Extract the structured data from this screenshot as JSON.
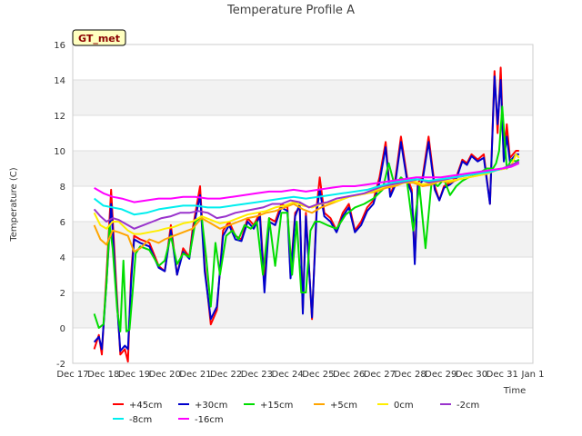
{
  "chart_data": {
    "type": "line",
    "title": "Temperature Profile A",
    "xlabel": "Time",
    "ylabel": "Temperature (C)",
    "badge": "GT_met",
    "ylim": [
      -2,
      16
    ],
    "xlim": [
      0,
      15
    ],
    "yticks": [
      -2,
      0,
      2,
      4,
      6,
      8,
      10,
      12,
      14,
      16
    ],
    "xticks": [
      {
        "x": 0,
        "label": "Dec 17"
      },
      {
        "x": 1,
        "label": "Dec 18"
      },
      {
        "x": 2,
        "label": "Dec 19"
      },
      {
        "x": 3,
        "label": "Dec 20"
      },
      {
        "x": 4,
        "label": "Dec 21"
      },
      {
        "x": 5,
        "label": "Dec 22"
      },
      {
        "x": 6,
        "label": "Dec 23"
      },
      {
        "x": 7,
        "label": "Dec 24"
      },
      {
        "x": 8,
        "label": "Dec 25"
      },
      {
        "x": 9,
        "label": "Dec 26"
      },
      {
        "x": 10,
        "label": "Dec 27"
      },
      {
        "x": 11,
        "label": "Dec 28"
      },
      {
        "x": 12,
        "label": "Dec 29"
      },
      {
        "x": 13,
        "label": "Dec 30"
      },
      {
        "x": 14,
        "label": "Dec 31"
      },
      {
        "x": 15,
        "label": "Jan 1"
      }
    ],
    "colors": {
      "band": "#f2f2f2",
      "grid": "#dddddd",
      "badge_fill": "#ffffc0"
    },
    "series": [
      {
        "name": "+45cm",
        "color": "#ff0000",
        "x": [
          0.7,
          0.85,
          0.95,
          1.1,
          1.25,
          1.4,
          1.55,
          1.7,
          1.8,
          1.9,
          2.0,
          2.2,
          2.5,
          2.8,
          3.0,
          3.2,
          3.4,
          3.6,
          3.8,
          3.9,
          4.0,
          4.15,
          4.3,
          4.5,
          4.7,
          4.9,
          5.1,
          5.3,
          5.5,
          5.7,
          5.9,
          6.1,
          6.25,
          6.4,
          6.6,
          6.8,
          7.0,
          7.1,
          7.25,
          7.4,
          7.5,
          7.6,
          7.8,
          7.95,
          8.05,
          8.2,
          8.4,
          8.6,
          8.8,
          9.0,
          9.2,
          9.4,
          9.6,
          9.8,
          10.0,
          10.2,
          10.35,
          10.5,
          10.7,
          10.9,
          11.05,
          11.15,
          11.25,
          11.4,
          11.6,
          11.8,
          11.95,
          12.1,
          12.3,
          12.5,
          12.7,
          12.85,
          13.0,
          13.2,
          13.4,
          13.6,
          13.75,
          13.85,
          13.95,
          14.05,
          14.15,
          14.25,
          14.35,
          14.45,
          14.55
        ],
        "values": [
          -1.2,
          -0.4,
          -1.5,
          3.0,
          7.8,
          3.0,
          -1.5,
          -1.2,
          -1.9,
          3.0,
          5.2,
          5.0,
          4.8,
          3.5,
          3.2,
          5.8,
          3.0,
          4.5,
          4.0,
          5.5,
          6.5,
          8.0,
          3.5,
          0.2,
          1.0,
          5.5,
          6.0,
          5.2,
          5.0,
          6.2,
          5.8,
          6.5,
          2.5,
          6.2,
          6.0,
          7.0,
          6.8,
          3.0,
          6.5,
          6.8,
          1.0,
          6.5,
          0.5,
          6.8,
          8.5,
          6.5,
          6.2,
          5.5,
          6.5,
          7.0,
          5.5,
          6.0,
          6.8,
          7.2,
          8.5,
          10.5,
          7.5,
          8.2,
          10.8,
          8.5,
          7.8,
          3.8,
          8.2,
          8.5,
          10.8,
          8.0,
          7.2,
          8.0,
          8.2,
          8.5,
          9.5,
          9.3,
          9.8,
          9.5,
          9.8,
          7.0,
          14.5,
          11.0,
          14.7,
          9.5,
          11.5,
          9.6,
          9.8,
          10.0,
          10.0
        ]
      },
      {
        "name": "+30cm",
        "color": "#0000cc",
        "x": [
          0.7,
          0.85,
          0.95,
          1.1,
          1.25,
          1.4,
          1.55,
          1.7,
          1.8,
          1.9,
          2.0,
          2.2,
          2.5,
          2.8,
          3.0,
          3.2,
          3.4,
          3.6,
          3.8,
          3.9,
          4.0,
          4.15,
          4.3,
          4.5,
          4.7,
          4.9,
          5.1,
          5.3,
          5.5,
          5.7,
          5.9,
          6.1,
          6.25,
          6.4,
          6.6,
          6.8,
          7.0,
          7.1,
          7.25,
          7.4,
          7.5,
          7.6,
          7.8,
          7.95,
          8.05,
          8.2,
          8.4,
          8.6,
          8.8,
          9.0,
          9.2,
          9.4,
          9.6,
          9.8,
          10.0,
          10.2,
          10.35,
          10.5,
          10.7,
          10.9,
          11.05,
          11.15,
          11.25,
          11.4,
          11.6,
          11.8,
          11.95,
          12.1,
          12.3,
          12.5,
          12.7,
          12.85,
          13.0,
          13.2,
          13.4,
          13.6,
          13.75,
          13.85,
          13.95,
          14.05,
          14.15,
          14.25,
          14.35,
          14.45,
          14.55
        ],
        "values": [
          -0.8,
          -0.5,
          -1.2,
          2.5,
          7.0,
          2.5,
          -1.3,
          -1.0,
          -1.2,
          2.5,
          5.0,
          4.8,
          4.6,
          3.4,
          3.2,
          5.5,
          3.0,
          4.3,
          3.9,
          5.2,
          6.2,
          7.5,
          3.2,
          0.5,
          1.2,
          5.2,
          5.8,
          5.0,
          4.9,
          6.0,
          5.6,
          6.3,
          2.0,
          6.0,
          5.8,
          6.8,
          6.6,
          2.8,
          6.3,
          7.0,
          0.8,
          6.3,
          0.6,
          6.5,
          7.8,
          6.3,
          6.0,
          5.4,
          6.3,
          6.8,
          5.4,
          5.8,
          6.6,
          7.0,
          8.2,
          10.2,
          7.4,
          8.0,
          10.5,
          8.3,
          7.6,
          3.6,
          8.0,
          8.3,
          10.5,
          7.8,
          7.2,
          7.9,
          8.1,
          8.4,
          9.4,
          9.2,
          9.7,
          9.4,
          9.6,
          7.0,
          14.2,
          11.5,
          14.0,
          9.4,
          10.8,
          9.4,
          9.6,
          9.8,
          9.8
        ]
      },
      {
        "name": "+15cm",
        "color": "#00dd00",
        "x": [
          0.7,
          0.85,
          1.0,
          1.1,
          1.2,
          1.3,
          1.45,
          1.55,
          1.65,
          1.75,
          1.85,
          1.95,
          2.05,
          2.2,
          2.5,
          2.8,
          3.0,
          3.2,
          3.4,
          3.6,
          3.8,
          4.0,
          4.2,
          4.35,
          4.5,
          4.65,
          4.8,
          5.0,
          5.2,
          5.4,
          5.6,
          5.8,
          6.0,
          6.2,
          6.4,
          6.6,
          6.8,
          7.0,
          7.15,
          7.3,
          7.45,
          7.6,
          7.75,
          7.9,
          8.05,
          8.3,
          8.6,
          8.9,
          9.2,
          9.5,
          9.8,
          10.1,
          10.3,
          10.5,
          10.7,
          10.9,
          11.1,
          11.3,
          11.5,
          11.7,
          11.9,
          12.1,
          12.3,
          12.5,
          12.7,
          12.9,
          13.1,
          13.3,
          13.5,
          13.7,
          13.8,
          13.9,
          14.0,
          14.15,
          14.3,
          14.45,
          14.55
        ],
        "values": [
          0.8,
          0.0,
          0.2,
          2.5,
          5.8,
          4.5,
          1.0,
          -0.2,
          3.8,
          -0.2,
          -0.1,
          2.0,
          4.2,
          4.6,
          4.4,
          3.5,
          3.8,
          5.2,
          3.6,
          4.2,
          4.0,
          6.0,
          6.3,
          4.0,
          1.2,
          4.8,
          3.0,
          5.2,
          5.5,
          5.0,
          5.8,
          5.6,
          6.0,
          3.0,
          6.2,
          3.5,
          6.5,
          6.5,
          3.0,
          6.0,
          2.0,
          2.0,
          5.5,
          6.0,
          6.0,
          5.8,
          5.6,
          6.4,
          6.8,
          7.0,
          7.3,
          7.8,
          9.3,
          8.0,
          8.5,
          8.2,
          5.5,
          8.0,
          4.5,
          8.3,
          8.0,
          8.4,
          7.5,
          8.0,
          8.3,
          8.5,
          8.6,
          8.8,
          9.0,
          9.0,
          9.3,
          10.0,
          12.5,
          9.0,
          9.5,
          9.4,
          9.5
        ]
      },
      {
        "name": "+5cm",
        "color": "#ffa500",
        "x": [
          0.7,
          0.9,
          1.1,
          1.3,
          1.5,
          1.8,
          2.0,
          2.2,
          2.5,
          2.8,
          3.0,
          3.3,
          3.6,
          3.9,
          4.2,
          4.5,
          4.8,
          5.1,
          5.4,
          5.7,
          6.0,
          6.3,
          6.6,
          6.9,
          7.2,
          7.5,
          7.8,
          8.1,
          8.4,
          8.7,
          9.0,
          9.3,
          9.6,
          9.9,
          10.2,
          10.5,
          10.8,
          11.1,
          11.4,
          11.7,
          12.0,
          12.3,
          12.6,
          12.9,
          13.2,
          13.5,
          13.8,
          14.1,
          14.4,
          14.55
        ],
        "values": [
          5.8,
          5.0,
          4.7,
          5.5,
          5.4,
          5.2,
          4.3,
          4.5,
          5.0,
          4.8,
          5.0,
          5.2,
          5.4,
          5.6,
          6.2,
          5.9,
          5.6,
          5.8,
          6.0,
          6.2,
          6.3,
          6.5,
          6.6,
          6.8,
          7.0,
          6.7,
          6.5,
          6.8,
          7.0,
          7.2,
          7.4,
          7.5,
          7.6,
          7.7,
          7.9,
          8.0,
          8.2,
          8.2,
          8.0,
          8.1,
          8.3,
          8.2,
          8.4,
          8.5,
          8.6,
          8.7,
          8.9,
          9.0,
          9.2,
          9.3
        ]
      },
      {
        "name": "0cm",
        "color": "#ffee00",
        "x": [
          0.7,
          0.9,
          1.1,
          1.3,
          1.5,
          1.8,
          2.0,
          2.2,
          2.5,
          2.8,
          3.0,
          3.3,
          3.6,
          3.9,
          4.2,
          4.5,
          4.8,
          5.1,
          5.4,
          5.7,
          6.0,
          6.3,
          6.6,
          6.9,
          7.2,
          7.5,
          7.8,
          8.1,
          8.4,
          8.7,
          9.0,
          9.3,
          9.6,
          9.9,
          10.2,
          10.5,
          10.8,
          11.1,
          11.4,
          11.7,
          12.0,
          12.3,
          12.6,
          12.9,
          13.2,
          13.5,
          13.8,
          14.1,
          14.3,
          14.45,
          14.55
        ],
        "values": [
          6.5,
          5.8,
          5.6,
          6.0,
          6.0,
          5.5,
          5.3,
          5.3,
          5.4,
          5.5,
          5.6,
          5.7,
          5.9,
          6.0,
          6.3,
          6.1,
          5.9,
          6.0,
          6.2,
          6.4,
          6.5,
          6.6,
          6.8,
          6.9,
          7.1,
          6.9,
          6.8,
          7.0,
          7.1,
          7.2,
          7.4,
          7.5,
          7.6,
          7.8,
          8.0,
          8.1,
          8.2,
          8.3,
          8.1,
          8.2,
          8.3,
          8.3,
          8.4,
          8.5,
          8.6,
          8.7,
          8.9,
          9.0,
          9.2,
          9.8,
          9.6
        ]
      },
      {
        "name": "-2cm",
        "color": "#9933cc",
        "x": [
          0.7,
          0.9,
          1.1,
          1.3,
          1.5,
          1.8,
          2.0,
          2.3,
          2.6,
          2.9,
          3.2,
          3.5,
          3.8,
          4.1,
          4.4,
          4.7,
          5.0,
          5.3,
          5.6,
          5.9,
          6.2,
          6.5,
          6.8,
          7.1,
          7.4,
          7.7,
          8.0,
          8.3,
          8.6,
          8.9,
          9.2,
          9.5,
          9.8,
          10.1,
          10.4,
          10.7,
          11.0,
          11.3,
          11.6,
          11.9,
          12.2,
          12.5,
          12.8,
          13.1,
          13.4,
          13.7,
          14.0,
          14.3,
          14.55
        ],
        "values": [
          6.7,
          6.3,
          6.0,
          6.2,
          6.1,
          5.8,
          5.6,
          5.8,
          6.0,
          6.2,
          6.3,
          6.5,
          6.5,
          6.6,
          6.5,
          6.2,
          6.3,
          6.5,
          6.6,
          6.7,
          6.8,
          7.0,
          7.0,
          7.2,
          7.1,
          6.8,
          7.0,
          7.1,
          7.3,
          7.4,
          7.5,
          7.6,
          7.8,
          8.0,
          8.1,
          8.2,
          8.3,
          8.4,
          8.2,
          8.3,
          8.4,
          8.5,
          8.6,
          8.7,
          8.8,
          8.9,
          9.0,
          9.2,
          9.4
        ]
      },
      {
        "name": "-8cm",
        "color": "#00eeee",
        "x": [
          0.7,
          1.0,
          1.3,
          1.6,
          2.0,
          2.4,
          2.8,
          3.2,
          3.6,
          4.0,
          4.4,
          4.8,
          5.2,
          5.6,
          6.0,
          6.4,
          6.8,
          7.2,
          7.6,
          8.0,
          8.4,
          8.8,
          9.2,
          9.6,
          10.0,
          10.4,
          10.8,
          11.2,
          11.6,
          12.0,
          12.4,
          12.8,
          13.2,
          13.6,
          14.0,
          14.3,
          14.55
        ],
        "values": [
          7.3,
          6.9,
          6.8,
          6.7,
          6.4,
          6.5,
          6.7,
          6.8,
          6.9,
          6.9,
          6.8,
          6.8,
          6.9,
          7.0,
          7.1,
          7.2,
          7.3,
          7.4,
          7.3,
          7.4,
          7.5,
          7.6,
          7.7,
          7.8,
          8.0,
          8.2,
          8.3,
          8.4,
          8.3,
          8.4,
          8.5,
          8.6,
          8.7,
          8.8,
          9.0,
          9.1,
          9.3
        ]
      },
      {
        "name": "-16cm",
        "color": "#ff00ff",
        "x": [
          0.7,
          1.0,
          1.3,
          1.6,
          2.0,
          2.4,
          2.8,
          3.2,
          3.6,
          4.0,
          4.4,
          4.8,
          5.2,
          5.6,
          6.0,
          6.4,
          6.8,
          7.2,
          7.6,
          8.0,
          8.4,
          8.8,
          9.2,
          9.6,
          10.0,
          10.4,
          10.8,
          11.2,
          11.6,
          12.0,
          12.4,
          12.8,
          13.2,
          13.6,
          14.0,
          14.3,
          14.55
        ],
        "values": [
          7.9,
          7.6,
          7.4,
          7.3,
          7.1,
          7.2,
          7.3,
          7.3,
          7.4,
          7.4,
          7.3,
          7.3,
          7.4,
          7.5,
          7.6,
          7.7,
          7.7,
          7.8,
          7.7,
          7.8,
          7.9,
          8.0,
          8.0,
          8.1,
          8.2,
          8.3,
          8.4,
          8.5,
          8.5,
          8.5,
          8.6,
          8.7,
          8.8,
          8.9,
          9.0,
          9.1,
          9.3
        ]
      }
    ]
  }
}
